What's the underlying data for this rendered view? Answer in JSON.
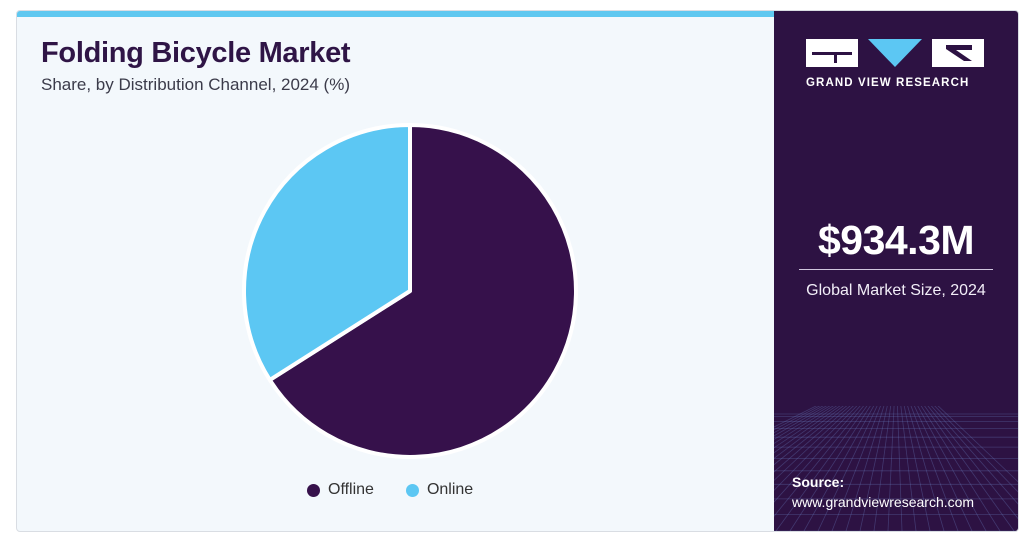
{
  "header": {
    "title": "Folding Bicycle Market",
    "subtitle": "Share, by Distribution Channel, 2024 (%)"
  },
  "chart_data": {
    "type": "pie",
    "title": "Folding Bicycle Market",
    "subtitle": "Share, by Distribution Channel, 2024 (%)",
    "categories": [
      "Offline",
      "Online"
    ],
    "values": [
      66,
      34
    ],
    "colors": [
      "#36114b",
      "#5cc7f3"
    ],
    "legend_position": "bottom"
  },
  "sidebar": {
    "brand": "GRAND VIEW RESEARCH",
    "market_size_value": "$934.3M",
    "market_size_label": "Global Market Size, 2024",
    "source_label": "Source:",
    "source_url": "www.grandviewresearch.com"
  }
}
